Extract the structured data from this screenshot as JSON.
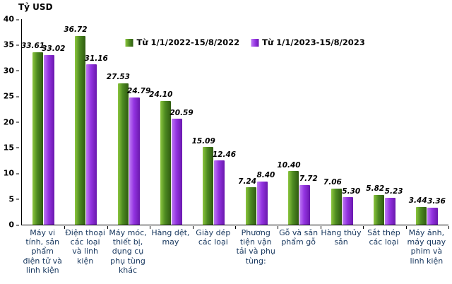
{
  "chart_data": {
    "type": "bar",
    "title": "",
    "ylabel": "Tỷ USD",
    "xlabel": "",
    "ylim": [
      0,
      40
    ],
    "yticks": [
      0,
      5,
      10,
      15,
      20,
      25,
      30,
      35,
      40
    ],
    "grid": false,
    "legend_position": "top",
    "categories": [
      "Máy vi tính, sản phẩm điện tử và linh kiện",
      "Điện thoại các loại và linh kiện",
      "Máy móc, thiết bị, dụng cụ phụ tùng khác",
      "Hàng dệt, may",
      "Giày dép các loại",
      "Phương tiện vận tải và phụ tùng:",
      "Gỗ và sản phẩm gỗ",
      "Hàng thủy sản",
      "Sắt thép các loại",
      "Máy ảnh, máy quay phim và linh kiện"
    ],
    "series": [
      {
        "name": "Từ 1/1/2022-15/8/2022",
        "color": "#4D8A21",
        "color_light": "#8CC63E",
        "color_dark": "#2F5B10",
        "values": [
          33.61,
          36.72,
          27.53,
          24.1,
          15.09,
          7.24,
          10.4,
          7.06,
          5.82,
          3.44
        ]
      },
      {
        "name": "Từ 1/1/2023-15/8/2023",
        "color": "#9333E0",
        "color_light": "#BE7BF4",
        "color_dark": "#6A18AE",
        "values": [
          33.02,
          31.16,
          24.79,
          20.59,
          12.46,
          8.4,
          7.72,
          5.3,
          5.23,
          3.36
        ]
      }
    ]
  }
}
